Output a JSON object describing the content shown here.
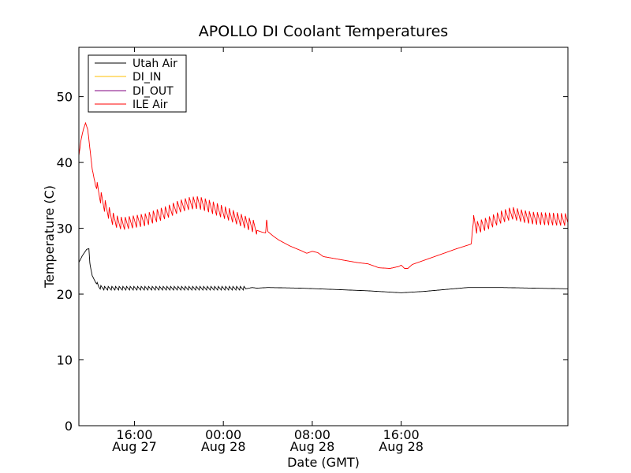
{
  "chart_data": {
    "type": "line",
    "title": "APOLLO DI Coolant Temperatures",
    "xlabel": "Date (GMT)",
    "ylabel": "Temperature (C)",
    "xlim": [
      11.0,
      55.0
    ],
    "ylim": [
      0,
      57.5
    ],
    "grid": false,
    "legend_position": "top-left",
    "y_ticks": [
      0,
      10,
      20,
      30,
      40,
      50
    ],
    "x_ticks": [
      {
        "value": 16,
        "line1": "16:00",
        "line2": "Aug 27"
      },
      {
        "value": 24,
        "line1": "00:00",
        "line2": "Aug 28"
      },
      {
        "value": 32,
        "line1": "08:00",
        "line2": "Aug 28"
      },
      {
        "value": 40,
        "line1": "16:00",
        "line2": "Aug 28"
      }
    ],
    "series": [
      {
        "name": "Utah Air",
        "color": "#000000",
        "pattern": "sawtooth",
        "points": [
          [
            11.0,
            24.8
          ],
          [
            11.3,
            25.8
          ],
          [
            11.5,
            26.3
          ],
          [
            11.7,
            26.8
          ],
          [
            11.9,
            26.9
          ],
          [
            12.0,
            24.5
          ],
          [
            12.2,
            22.8
          ],
          [
            12.5,
            21.8
          ],
          [
            12.8,
            21.0
          ],
          [
            13.3,
            20.8
          ],
          [
            14.0,
            20.8
          ],
          [
            15.0,
            20.8
          ],
          [
            18.0,
            20.8
          ],
          [
            21.0,
            20.8
          ],
          [
            24.0,
            20.8
          ],
          [
            26.0,
            20.8
          ],
          [
            26.6,
            21.0
          ],
          [
            27.0,
            20.9
          ],
          [
            28.0,
            21.0
          ],
          [
            31.0,
            20.9
          ],
          [
            34.0,
            20.7
          ],
          [
            37.0,
            20.5
          ],
          [
            40.0,
            20.2
          ],
          [
            42.0,
            20.4
          ],
          [
            44.0,
            20.7
          ],
          [
            46.0,
            21.0
          ],
          [
            49.0,
            21.0
          ],
          [
            55.0,
            20.8
          ]
        ],
        "spikes": {
          "start": 12.6,
          "end": 26.0,
          "period": 0.33,
          "amplitude": 0.6
        }
      },
      {
        "name": "DI_IN",
        "color": "#ffbf00",
        "points": []
      },
      {
        "name": "DI_OUT",
        "color": "#800080",
        "points": []
      },
      {
        "name": "ILE Air",
        "color": "#ff0000",
        "pattern": "sawtooth",
        "points": [
          [
            11.0,
            41.0
          ],
          [
            11.2,
            43.5
          ],
          [
            11.4,
            45.0
          ],
          [
            11.6,
            46.0
          ],
          [
            11.8,
            45.0
          ],
          [
            12.0,
            42.0
          ],
          [
            12.2,
            39.0
          ],
          [
            12.5,
            36.5
          ],
          [
            12.8,
            35.0
          ],
          [
            13.2,
            33.5
          ],
          [
            13.6,
            32.3
          ],
          [
            14.0,
            31.2
          ],
          [
            14.5,
            30.6
          ],
          [
            15.0,
            30.4
          ],
          [
            17.0,
            31.0
          ],
          [
            19.0,
            32.2
          ],
          [
            20.0,
            33.0
          ],
          [
            21.0,
            33.5
          ],
          [
            21.7,
            33.6
          ],
          [
            22.5,
            33.2
          ],
          [
            23.5,
            32.5
          ],
          [
            24.5,
            31.8
          ],
          [
            25.5,
            31.0
          ],
          [
            26.5,
            30.2
          ],
          [
            27.0,
            29.7
          ],
          [
            27.5,
            29.4
          ],
          [
            27.8,
            29.3
          ],
          [
            27.9,
            31.5
          ],
          [
            28.0,
            29.5
          ],
          [
            28.5,
            28.8
          ],
          [
            29.0,
            28.2
          ],
          [
            30.0,
            27.3
          ],
          [
            31.0,
            26.6
          ],
          [
            31.5,
            26.2
          ],
          [
            32.0,
            26.5
          ],
          [
            32.5,
            26.3
          ],
          [
            33.0,
            25.7
          ],
          [
            34.0,
            25.4
          ],
          [
            35.0,
            25.1
          ],
          [
            36.0,
            24.8
          ],
          [
            37.0,
            24.6
          ],
          [
            37.5,
            24.3
          ],
          [
            38.0,
            24.0
          ],
          [
            39.0,
            23.9
          ],
          [
            39.8,
            24.2
          ],
          [
            40.0,
            24.4
          ],
          [
            40.3,
            23.9
          ],
          [
            40.6,
            23.9
          ],
          [
            41.0,
            24.5
          ],
          [
            42.0,
            25.1
          ],
          [
            43.0,
            25.7
          ],
          [
            44.0,
            26.3
          ],
          [
            45.0,
            26.9
          ],
          [
            46.3,
            27.6
          ],
          [
            46.4,
            29.5
          ],
          [
            46.5,
            31.0
          ],
          [
            46.8,
            29.8
          ],
          [
            48.0,
            30.6
          ],
          [
            49.0,
            31.4
          ],
          [
            50.0,
            32.0
          ],
          [
            51.0,
            31.5
          ],
          [
            52.0,
            31.2
          ],
          [
            55.0,
            31.0
          ]
        ],
        "spikes": {
          "start": 12.6,
          "end": 27.0,
          "period": 0.36,
          "amplitude": 2.0,
          "extra_start": 46.5,
          "extra_end": 55.0
        }
      }
    ]
  }
}
